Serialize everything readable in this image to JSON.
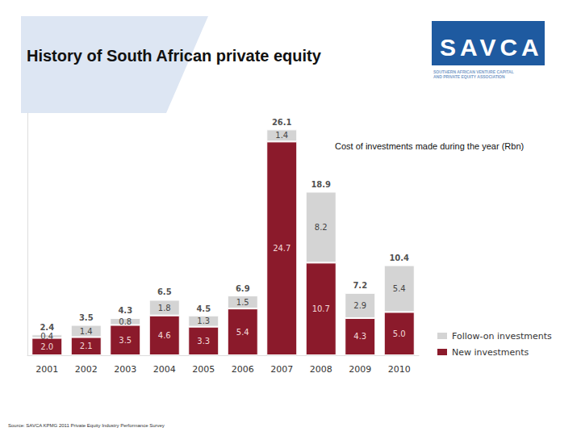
{
  "header": {
    "title": "History of South African private equity",
    "logo": "SAVCA",
    "logo_lines": [
      "SOUTHERN AFRICAN VENTURE CAPITAL",
      "AND PRIVATE EQUITY ASSOCIATION"
    ]
  },
  "source": "Source: SAVCA KPMG 2011 Private Equity Industry Performance Survey",
  "chart_data": {
    "type": "bar",
    "subtitle": "Cost of investments made during the year (Rbn)",
    "categories": [
      "2001",
      "2002",
      "2003",
      "2004",
      "2005",
      "2006",
      "2007",
      "2008",
      "2009",
      "2010"
    ],
    "series": [
      {
        "name": "Follow-on investments",
        "color": "#d4d4d4",
        "values": [
          0.4,
          1.4,
          0.8,
          1.8,
          1.3,
          1.5,
          1.4,
          8.2,
          2.9,
          5.4
        ]
      },
      {
        "name": "New investments",
        "color": "#8b1a2b",
        "values": [
          2.0,
          2.1,
          3.5,
          4.6,
          3.3,
          5.4,
          24.7,
          10.7,
          4.3,
          5.0
        ],
        "value_labels": [
          "2.0",
          "2.1",
          "3.5",
          "4.6",
          "3.3",
          "5.4",
          "24.7",
          "10.7",
          "4.3",
          "5.0"
        ]
      }
    ],
    "totals": [
      2.4,
      3.5,
      4.3,
      6.5,
      4.5,
      6.9,
      26.1,
      18.9,
      7.2,
      10.4
    ],
    "ylim": [
      0,
      28
    ],
    "yticks": [],
    "stacked": true,
    "data_labels": true,
    "tick_labels": "x",
    "grid": false,
    "legend": "right"
  }
}
